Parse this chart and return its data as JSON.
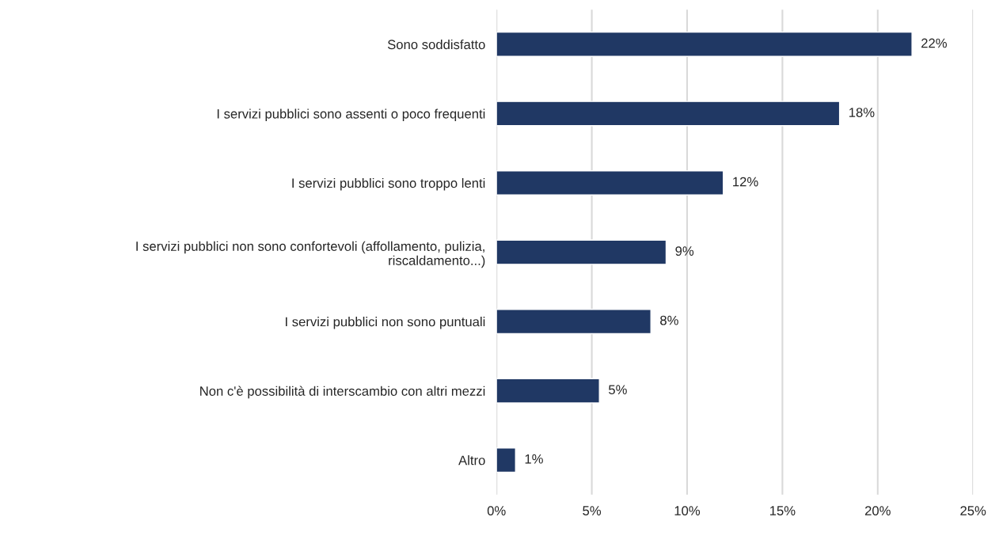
{
  "chart_data": {
    "type": "bar",
    "orientation": "horizontal",
    "categories": [
      "Sono soddisfatto",
      "I servizi pubblici sono assenti o poco frequenti",
      "I servizi pubblici sono troppo lenti",
      "I servizi pubblici non sono confortevoli (affollamento, pulizia,\nriscaldamento...)",
      "I servizi pubblici non sono puntuali",
      "Non c'è possibilità di interscambio con altri mezzi",
      "Altro"
    ],
    "values": [
      21.8,
      18.0,
      11.9,
      8.9,
      8.1,
      5.4,
      1.0
    ],
    "value_labels": [
      "22%",
      "18%",
      "12%",
      "9%",
      "8%",
      "5%",
      "1%"
    ],
    "color": "#203864",
    "xlim": [
      0,
      25
    ],
    "xticks": [
      {
        "value": 0,
        "label": "0%"
      },
      {
        "value": 5,
        "label": "5%"
      },
      {
        "value": 10,
        "label": "10%"
      },
      {
        "value": 15,
        "label": "15%"
      },
      {
        "value": 20,
        "label": "20%"
      },
      {
        "value": 25,
        "label": "25%"
      }
    ],
    "grid": "x",
    "legend": false
  }
}
